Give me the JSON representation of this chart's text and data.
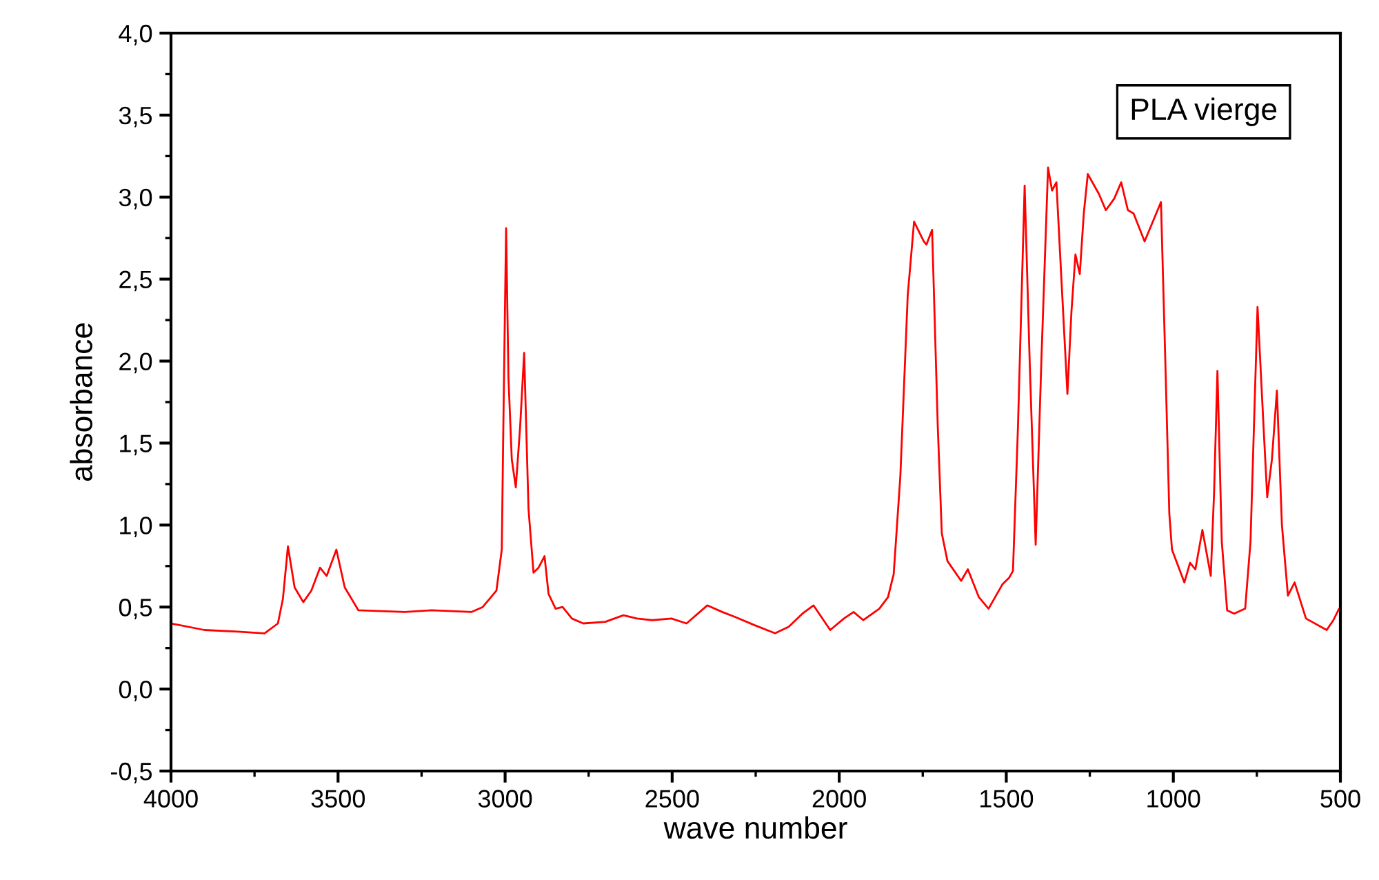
{
  "chart_data": {
    "type": "line",
    "xlabel": "wave number",
    "ylabel": "absorbance",
    "legend": "top right",
    "grid": false,
    "marker": "none",
    "line_style": "solid",
    "xlim": [
      4000,
      500
    ],
    "ylim": [
      -0.5,
      4.0
    ],
    "xticks": [
      4000,
      3500,
      3000,
      2500,
      2000,
      1500,
      1000,
      500
    ],
    "yticks": [
      {
        "value": -0.5,
        "label": "-0,5"
      },
      {
        "value": 0.0,
        "label": "0,0"
      },
      {
        "value": 0.5,
        "label": "0,5"
      },
      {
        "value": 1.0,
        "label": "1,0"
      },
      {
        "value": 1.5,
        "label": "1,5"
      },
      {
        "value": 2.0,
        "label": "2,0"
      },
      {
        "value": 2.5,
        "label": "2,5"
      },
      {
        "value": 3.0,
        "label": "3,0"
      },
      {
        "value": 3.5,
        "label": "3,5"
      },
      {
        "value": 4.0,
        "label": "4,0"
      }
    ],
    "series": [
      {
        "name": "PLA vierge",
        "color": "#ff0000",
        "x": [
          4000,
          3900,
          3800,
          3720,
          3680,
          3665,
          3650,
          3630,
          3604,
          3580,
          3554,
          3534,
          3505,
          3480,
          3439,
          3300,
          3220,
          3100,
          3067,
          3026,
          3010,
          3004,
          2997,
          2990,
          2980,
          2968,
          2955,
          2943,
          2930,
          2915,
          2900,
          2882,
          2870,
          2849,
          2828,
          2800,
          2766,
          2700,
          2646,
          2605,
          2560,
          2502,
          2457,
          2395,
          2350,
          2312,
          2254,
          2192,
          2151,
          2110,
          2077,
          2027,
          1986,
          1957,
          1928,
          1880,
          1854,
          1837,
          1817,
          1795,
          1776,
          1747,
          1739,
          1722,
          1705,
          1693,
          1676,
          1635,
          1615,
          1582,
          1553,
          1511,
          1491,
          1480,
          1465,
          1445,
          1430,
          1412,
          1395,
          1375,
          1363,
          1350,
          1335,
          1317,
          1305,
          1293,
          1280,
          1268,
          1256,
          1223,
          1202,
          1177,
          1156,
          1136,
          1119,
          1086,
          1037,
          1024,
          1012,
          1004,
          991,
          967,
          950,
          934,
          913,
          888,
          878,
          868,
          855,
          839,
          818,
          785,
          769,
          748,
          730,
          719,
          705,
          690,
          675,
          657,
          637,
          603,
          541,
          521,
          504,
          500
        ],
        "values": [
          0.4,
          0.36,
          0.35,
          0.34,
          0.4,
          0.55,
          0.87,
          0.62,
          0.53,
          0.6,
          0.74,
          0.69,
          0.85,
          0.62,
          0.48,
          0.47,
          0.48,
          0.47,
          0.5,
          0.6,
          0.85,
          1.8,
          2.81,
          1.9,
          1.4,
          1.23,
          1.6,
          2.05,
          1.1,
          0.71,
          0.74,
          0.81,
          0.58,
          0.49,
          0.5,
          0.43,
          0.4,
          0.41,
          0.45,
          0.43,
          0.42,
          0.43,
          0.4,
          0.51,
          0.47,
          0.44,
          0.39,
          0.34,
          0.38,
          0.46,
          0.51,
          0.36,
          0.43,
          0.47,
          0.42,
          0.49,
          0.56,
          0.7,
          1.3,
          2.4,
          2.85,
          2.73,
          2.71,
          2.8,
          1.6,
          0.95,
          0.78,
          0.66,
          0.73,
          0.56,
          0.49,
          0.64,
          0.68,
          0.72,
          1.6,
          3.07,
          2.0,
          0.88,
          2.0,
          3.18,
          3.04,
          3.09,
          2.5,
          1.8,
          2.3,
          2.65,
          2.53,
          2.9,
          3.14,
          3.02,
          2.92,
          2.99,
          3.09,
          2.92,
          2.9,
          2.73,
          2.97,
          2.0,
          1.07,
          0.85,
          0.78,
          0.65,
          0.77,
          0.73,
          0.97,
          0.69,
          1.2,
          1.94,
          0.9,
          0.48,
          0.46,
          0.49,
          0.9,
          2.33,
          1.6,
          1.17,
          1.4,
          1.82,
          1.0,
          0.57,
          0.65,
          0.43,
          0.36,
          0.42,
          0.49,
          0.49
        ]
      }
    ]
  }
}
